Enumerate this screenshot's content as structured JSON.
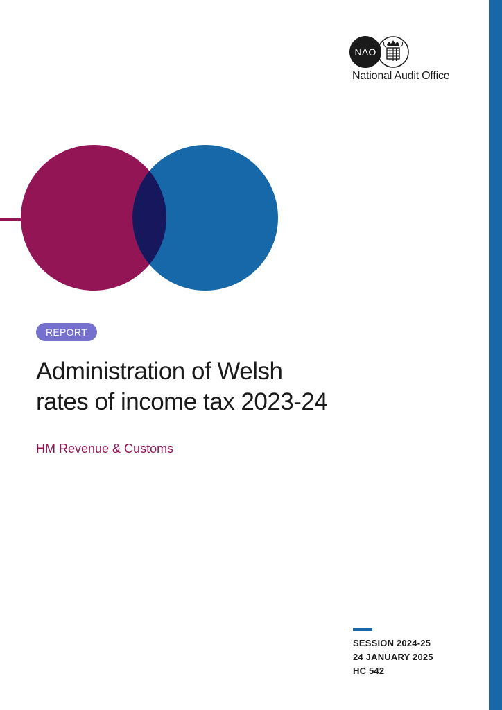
{
  "colors": {
    "stripe": "#1a67a8",
    "magenta": "#931556",
    "blue": "#1768a8",
    "overlap": "#17175e",
    "pill": "#7470cc",
    "department": "#931556",
    "session_rule": "#1a67a8"
  },
  "logo": {
    "abbr": "NAO",
    "name": "National Audit Office",
    "crest_icon": "portcullis-crest-icon"
  },
  "document": {
    "type_label": "REPORT",
    "title_lines": [
      "Administration of Welsh",
      "rates of income tax 2023-24"
    ],
    "department": "HM Revenue & Customs"
  },
  "session": {
    "session": "SESSION 2024-25",
    "date": "24 JANUARY 2025",
    "hc": "HC 542"
  }
}
